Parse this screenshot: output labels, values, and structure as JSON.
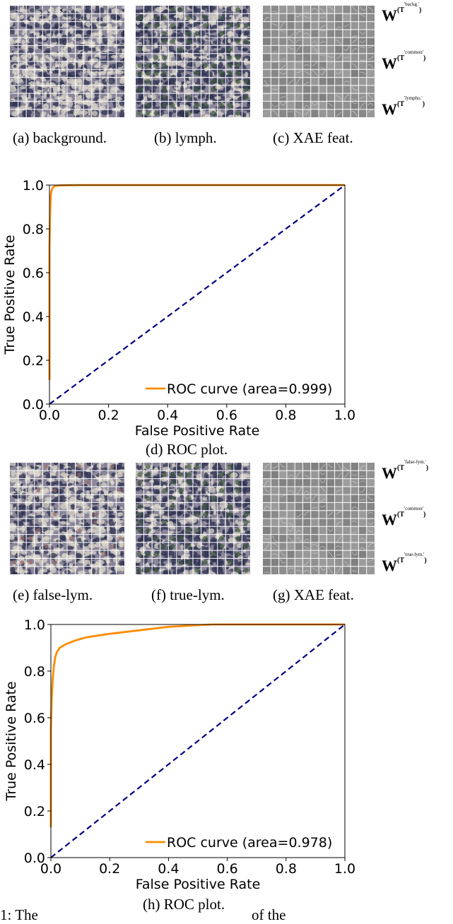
{
  "top": {
    "captions": {
      "a": "(a) background.",
      "b": "(b) lymph.",
      "c": "(c) XAE feat.",
      "d": "(d) ROC plot."
    },
    "weights": [
      {
        "symbol": "W",
        "T": "T",
        "sub": "'backg.'"
      },
      {
        "symbol": "W",
        "T": "T",
        "sub": "'common'"
      },
      {
        "symbol": "W",
        "T": "T",
        "sub": "'lympho.'"
      }
    ]
  },
  "bottom": {
    "captions": {
      "e": "(e) false-lym.",
      "f": "(f) true-lym.",
      "g": "(g) XAE feat.",
      "h": "(h) ROC plot."
    },
    "weights": [
      {
        "symbol": "W",
        "T": "T",
        "sub": "'false-lym.'"
      },
      {
        "symbol": "W",
        "T": "T",
        "sub": "'common'"
      },
      {
        "symbol": "W",
        "T": "T",
        "sub": "'true-lym.'"
      }
    ]
  },
  "footer": {
    "left_text": "1: The",
    "right_text": "of the"
  },
  "colors": {
    "roc": "#ff8c00",
    "diagonal": "#000080",
    "grid_line": "#ffffff",
    "patch_bg": "#8a8598",
    "patch_dark": "#2f3352",
    "patch_light": "#d9d6c9",
    "feat_bg": "#8f8f8f"
  },
  "chart_data": [
    {
      "type": "line",
      "title": "",
      "xlabel": "False Positive Rate",
      "ylabel": "True Positive Rate",
      "xlim": [
        0.0,
        1.0
      ],
      "ylim": [
        0.0,
        1.0
      ],
      "xticks": [
        "0.0",
        "0.2",
        "0.4",
        "0.6",
        "0.8",
        "1.0"
      ],
      "yticks": [
        "0.0",
        "0.2",
        "0.4",
        "0.6",
        "0.8",
        "1.0"
      ],
      "grid": false,
      "legend": "lower-right",
      "series": [
        {
          "name": "ROC curve (area=0.999)",
          "style": "solid",
          "color": "#ff8c00",
          "x": [
            0.0,
            0.0,
            0.002,
            0.004,
            0.006,
            0.01,
            0.015,
            0.02,
            0.03,
            0.05,
            0.1,
            0.3,
            0.6,
            1.0
          ],
          "y": [
            0.11,
            0.7,
            0.86,
            0.94,
            0.97,
            0.985,
            0.993,
            0.996,
            0.998,
            0.999,
            1.0,
            1.0,
            1.0,
            1.0
          ]
        },
        {
          "name": "",
          "style": "dashed",
          "color": "#000080",
          "x": [
            0.0,
            1.0
          ],
          "y": [
            0.0,
            1.0
          ]
        }
      ]
    },
    {
      "type": "line",
      "title": "",
      "xlabel": "False Positive Rate",
      "ylabel": "True Positive Rate",
      "xlim": [
        0.0,
        1.0
      ],
      "ylim": [
        0.0,
        1.0
      ],
      "xticks": [
        "0.0",
        "0.2",
        "0.4",
        "0.6",
        "0.8",
        "1.0"
      ],
      "yticks": [
        "0.0",
        "0.2",
        "0.4",
        "0.6",
        "0.8",
        "1.0"
      ],
      "grid": false,
      "legend": "lower-right",
      "series": [
        {
          "name": "ROC curve (area=0.978)",
          "style": "solid",
          "color": "#ff8c00",
          "x": [
            0.0,
            0.0,
            0.003,
            0.006,
            0.01,
            0.015,
            0.02,
            0.03,
            0.05,
            0.08,
            0.12,
            0.2,
            0.3,
            0.4,
            0.5,
            0.55,
            0.7,
            1.0
          ],
          "y": [
            0.13,
            0.55,
            0.68,
            0.76,
            0.82,
            0.86,
            0.88,
            0.9,
            0.915,
            0.93,
            0.945,
            0.96,
            0.975,
            0.99,
            0.997,
            1.0,
            1.0,
            1.0
          ]
        },
        {
          "name": "",
          "style": "dashed",
          "color": "#000080",
          "x": [
            0.0,
            1.0
          ],
          "y": [
            0.0,
            1.0
          ]
        }
      ]
    }
  ]
}
